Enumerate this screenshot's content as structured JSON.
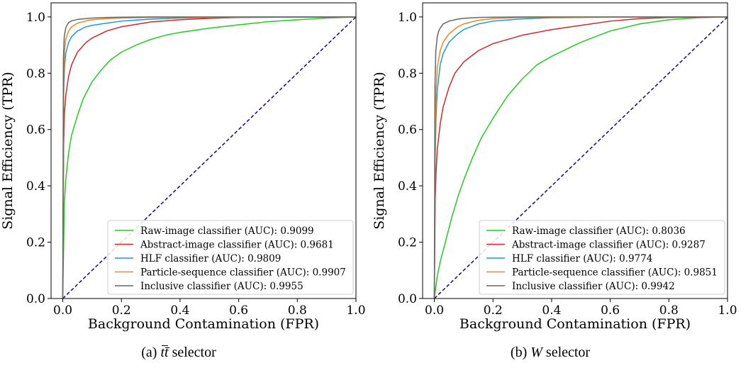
{
  "chart_data": [
    {
      "type": "line",
      "caption_label": "(a)",
      "caption_math": "tt̄",
      "caption_suffix": " selector",
      "xlabel": "Background Contamination (FPR)",
      "ylabel": "Signal Efficiency (TPR)",
      "xlim": [
        -0.04,
        1.0
      ],
      "ylim": [
        0.0,
        1.05
      ],
      "xticks": [
        "0.0",
        "0.2",
        "0.4",
        "0.6",
        "0.8",
        "1.0"
      ],
      "yticks": [
        "0.0",
        "0.2",
        "0.4",
        "0.6",
        "0.8",
        "1.0"
      ],
      "grid": false,
      "legend_position": "lower-right",
      "series": [
        {
          "name": "Raw-image classifier (AUC): 0.9099",
          "color": "#22cc22",
          "x": [
            0,
            0.005,
            0.01,
            0.02,
            0.03,
            0.05,
            0.07,
            0.1,
            0.13,
            0.16,
            0.2,
            0.25,
            0.3,
            0.35,
            0.4,
            0.5,
            0.6,
            0.7,
            0.8,
            0.9,
            1.0
          ],
          "y": [
            0,
            0.33,
            0.42,
            0.52,
            0.58,
            0.65,
            0.71,
            0.77,
            0.81,
            0.845,
            0.875,
            0.9,
            0.92,
            0.935,
            0.945,
            0.96,
            0.972,
            0.983,
            0.99,
            0.996,
            1.0
          ]
        },
        {
          "name": "Abstract-image classifier (AUC): 0.9681",
          "color": "#d62728",
          "x": [
            0,
            0.003,
            0.006,
            0.01,
            0.02,
            0.03,
            0.05,
            0.08,
            0.1,
            0.15,
            0.2,
            0.3,
            0.4,
            0.5,
            0.6,
            0.8,
            1.0
          ],
          "y": [
            0,
            0.55,
            0.66,
            0.72,
            0.79,
            0.83,
            0.875,
            0.91,
            0.925,
            0.95,
            0.965,
            0.982,
            0.99,
            0.995,
            0.998,
            0.999,
            1.0
          ]
        },
        {
          "name": "HLF classifier (AUC): 0.9809",
          "color": "#1f9ad6",
          "x": [
            0,
            0.003,
            0.006,
            0.01,
            0.02,
            0.03,
            0.05,
            0.08,
            0.1,
            0.15,
            0.2,
            0.3,
            0.4,
            0.5,
            0.7,
            1.0
          ],
          "y": [
            0,
            0.72,
            0.82,
            0.87,
            0.91,
            0.93,
            0.95,
            0.965,
            0.97,
            0.978,
            0.985,
            0.992,
            0.996,
            0.998,
            0.999,
            1.0
          ]
        },
        {
          "name": "Particle-sequence classifier (AUC): 0.9907",
          "color": "#ee8822",
          "x": [
            0,
            0.003,
            0.006,
            0.01,
            0.02,
            0.03,
            0.05,
            0.08,
            0.1,
            0.15,
            0.2,
            0.3,
            0.5,
            0.7,
            1.0
          ],
          "y": [
            0,
            0.8,
            0.88,
            0.92,
            0.95,
            0.965,
            0.978,
            0.986,
            0.99,
            0.994,
            0.996,
            0.998,
            0.999,
            1.0,
            1.0
          ]
        },
        {
          "name": "Inclusive classifier (AUC): 0.9955",
          "color": "#666666",
          "x": [
            0,
            0.002,
            0.005,
            0.01,
            0.015,
            0.02,
            0.03,
            0.05,
            0.08,
            0.1,
            0.15,
            0.2,
            0.3,
            0.5,
            1.0
          ],
          "y": [
            0,
            0.85,
            0.93,
            0.96,
            0.972,
            0.98,
            0.986,
            0.991,
            0.994,
            0.996,
            0.998,
            0.999,
            1.0,
            1.0,
            1.0
          ]
        }
      ]
    },
    {
      "type": "line",
      "caption_label": "(b)",
      "caption_math": "W",
      "caption_suffix": " selector",
      "xlabel": "Background Contamination (FPR)",
      "ylabel": "Signal Efficiency (TPR)",
      "xlim": [
        -0.04,
        1.0
      ],
      "ylim": [
        0.0,
        1.05
      ],
      "xticks": [
        "0.0",
        "0.2",
        "0.4",
        "0.6",
        "0.8",
        "1.0"
      ],
      "yticks": [
        "0.0",
        "0.2",
        "0.4",
        "0.6",
        "0.8",
        "1.0"
      ],
      "grid": false,
      "legend_position": "lower-right",
      "series": [
        {
          "name": "Raw-image classifier (AUC): 0.8036",
          "color": "#22cc22",
          "x": [
            0,
            0.01,
            0.02,
            0.04,
            0.06,
            0.08,
            0.1,
            0.13,
            0.16,
            0.2,
            0.25,
            0.3,
            0.35,
            0.4,
            0.5,
            0.6,
            0.7,
            0.8,
            0.9,
            1.0
          ],
          "y": [
            0,
            0.08,
            0.13,
            0.21,
            0.29,
            0.36,
            0.42,
            0.5,
            0.57,
            0.64,
            0.72,
            0.78,
            0.83,
            0.86,
            0.91,
            0.95,
            0.975,
            0.99,
            0.997,
            1.0
          ]
        },
        {
          "name": "Abstract-image classifier (AUC): 0.9287",
          "color": "#d62728",
          "x": [
            0,
            0.003,
            0.006,
            0.01,
            0.02,
            0.03,
            0.05,
            0.07,
            0.1,
            0.15,
            0.2,
            0.3,
            0.4,
            0.5,
            0.6,
            0.7,
            0.8,
            1.0
          ],
          "y": [
            0,
            0.35,
            0.45,
            0.53,
            0.62,
            0.68,
            0.75,
            0.8,
            0.84,
            0.88,
            0.905,
            0.935,
            0.955,
            0.97,
            0.985,
            0.994,
            0.998,
            1.0
          ]
        },
        {
          "name": "HLF classifier (AUC): 0.9774",
          "color": "#1f9ad6",
          "x": [
            0,
            0.003,
            0.006,
            0.01,
            0.02,
            0.03,
            0.05,
            0.08,
            0.1,
            0.15,
            0.2,
            0.3,
            0.4,
            0.6,
            0.8,
            1.0
          ],
          "y": [
            0,
            0.5,
            0.65,
            0.74,
            0.83,
            0.87,
            0.91,
            0.94,
            0.955,
            0.975,
            0.985,
            0.993,
            0.997,
            0.999,
            1.0,
            1.0
          ]
        },
        {
          "name": "Particle-sequence classifier (AUC): 0.9851",
          "color": "#ee8822",
          "x": [
            0,
            0.003,
            0.006,
            0.01,
            0.02,
            0.03,
            0.05,
            0.08,
            0.1,
            0.15,
            0.2,
            0.3,
            0.5,
            0.8,
            1.0
          ],
          "y": [
            0,
            0.6,
            0.74,
            0.82,
            0.88,
            0.91,
            0.94,
            0.965,
            0.975,
            0.988,
            0.994,
            0.998,
            0.999,
            1.0,
            1.0
          ]
        },
        {
          "name": "Inclusive classifier (AUC): 0.9942",
          "color": "#666666",
          "x": [
            0,
            0.002,
            0.005,
            0.01,
            0.015,
            0.02,
            0.03,
            0.05,
            0.08,
            0.1,
            0.15,
            0.2,
            0.3,
            0.5,
            1.0
          ],
          "y": [
            0,
            0.75,
            0.88,
            0.93,
            0.95,
            0.96,
            0.975,
            0.985,
            0.992,
            0.995,
            0.998,
            0.999,
            1.0,
            1.0,
            1.0
          ]
        }
      ]
    }
  ],
  "diagonal_color": "#1a1a80"
}
